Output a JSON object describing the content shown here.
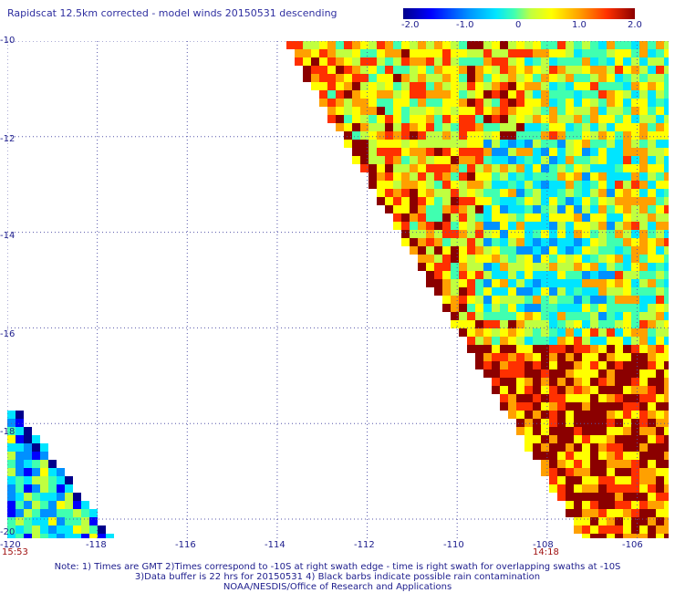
{
  "title": "Rapidscat 12.5km corrected - model winds 20150531 descending",
  "colorbar": {
    "labels": [
      "-2.0",
      "-1.0",
      "0",
      "1.0",
      "2.0"
    ],
    "min": -2.0,
    "max": 2.0,
    "colors": [
      "#00008b",
      "#0000ff",
      "#0090ff",
      "#00e5ff",
      "#40ffb0",
      "#c0ff40",
      "#ffff00",
      "#ffa000",
      "#ff3000",
      "#8b0000"
    ]
  },
  "axes": {
    "lat_labels": [
      "-10",
      "-12",
      "-14",
      "-16",
      "-18",
      "-20"
    ],
    "lon_labels": [
      "-120",
      "-118",
      "-116",
      "-114",
      "-112",
      "-110",
      "-108",
      "-106"
    ],
    "lon_range": [
      -120,
      -105.3
    ],
    "lat_range": [
      -20.4,
      -10
    ],
    "grid": "dotted"
  },
  "swath_times": [
    "15:53",
    "14:18"
  ],
  "notes": [
    "Note: 1) Times are GMT 2)Times correspond to -10S at right swath edge - time is right swath for overlapping swaths at -10S",
    "3)Data buffer is 22 hrs for 20150531 4) Black barbs indicate possible rain contamination",
    "NOAA/NESDIS/Office of Research and Applications"
  ]
}
